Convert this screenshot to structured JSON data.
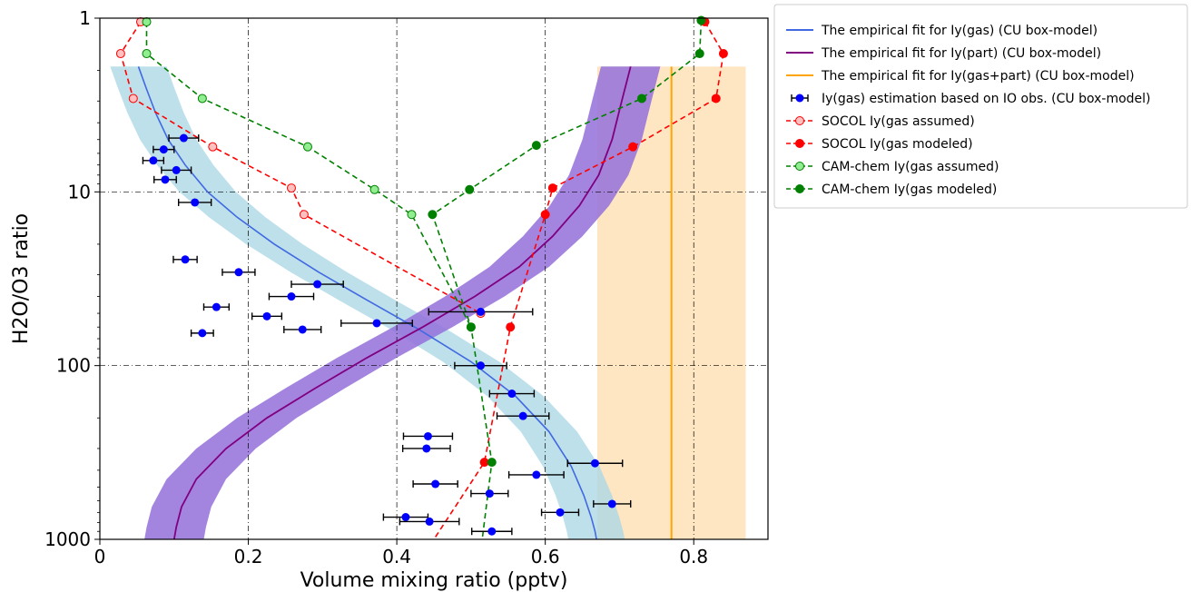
{
  "chart_data": {
    "type": "line",
    "xlabel": "Volume mixing ratio (pptv)",
    "ylabel": "H2O/O3 ratio",
    "xlim": [
      0,
      0.9
    ],
    "ylim": [
      1,
      1000
    ],
    "yscale": "log",
    "y_inverted": true,
    "grid": "dash-dot, major ticks",
    "legend_position": "outside-right-top",
    "x_ticks": [
      "0",
      "0.2",
      "0.4",
      "0.6",
      "0.8"
    ],
    "y_ticks": [
      "1",
      "10",
      "100",
      "1000"
    ],
    "legend": [
      {
        "label": "The empirical fit for Iy(gas) (CU box-model)",
        "color": "#4169e1",
        "marker": "line"
      },
      {
        "label": "The empirical fit for Iy(part) (CU box-model)",
        "color": "#800080",
        "marker": "line"
      },
      {
        "label": "The empirical fit for Iy(gas+part) (CU box-model)",
        "color": "#ffa500",
        "marker": "line"
      },
      {
        "label": "Iy(gas) estimation based on IO obs. (CU box-model)",
        "color": "#0000ff",
        "marker": "errorbar"
      },
      {
        "label": "SOCOL Iy(gas assumed)",
        "color": "#ff0000",
        "marker": "dashed-open"
      },
      {
        "label": "SOCOL Iy(gas modeled)",
        "color": "#ff0000",
        "marker": "dashed-filled"
      },
      {
        "label": "CAM-chem Iy(gas assumed)",
        "color": "#008000",
        "marker": "dashed-open"
      },
      {
        "label": "CAM-chem Iy(gas modeled)",
        "color": "#008000",
        "marker": "dashed-filled"
      }
    ],
    "fit_gas": {
      "color": "#4169e1",
      "band_color": "#add8e6",
      "x": [
        0.052,
        0.062,
        0.075,
        0.092,
        0.115,
        0.145,
        0.185,
        0.235,
        0.295,
        0.36,
        0.43,
        0.5,
        0.56,
        0.605,
        0.635,
        0.652,
        0.662,
        0.667,
        0.669
      ],
      "y": [
        1.9,
        2.5,
        3.5,
        5,
        7,
        10,
        14,
        20,
        29,
        42,
        62,
        95,
        150,
        240,
        380,
        560,
        750,
        900,
        1000
      ],
      "band_halfwidth": 0.038
    },
    "fit_part": {
      "color": "#800080",
      "band_color": "#9370db",
      "x": [
        0.715,
        0.703,
        0.69,
        0.672,
        0.646,
        0.61,
        0.565,
        0.505,
        0.435,
        0.36,
        0.29,
        0.225,
        0.17,
        0.13,
        0.11,
        0.103,
        0.1
      ],
      "y": [
        1.9,
        3,
        5,
        8,
        12,
        18,
        27,
        40,
        60,
        90,
        135,
        200,
        300,
        450,
        650,
        850,
        1000
      ],
      "band_halfwidth": 0.04
    },
    "fit_total": {
      "color": "#ffa500",
      "band_color": "#ffdead",
      "x_value": 0.77,
      "band": [
        0.67,
        0.87
      ],
      "y_top": 1.9
    },
    "obs": {
      "color": "#0000ff",
      "points": [
        {
          "x": 0.113,
          "y": 4.9,
          "err": 0.02
        },
        {
          "x": 0.086,
          "y": 5.7,
          "err": 0.014
        },
        {
          "x": 0.072,
          "y": 6.6,
          "err": 0.014
        },
        {
          "x": 0.103,
          "y": 7.5,
          "err": 0.02
        },
        {
          "x": 0.088,
          "y": 8.5,
          "err": 0.015
        },
        {
          "x": 0.128,
          "y": 11.5,
          "err": 0.022
        },
        {
          "x": 0.115,
          "y": 24.5,
          "err": 0.016
        },
        {
          "x": 0.187,
          "y": 29,
          "err": 0.022
        },
        {
          "x": 0.293,
          "y": 34,
          "err": 0.035
        },
        {
          "x": 0.258,
          "y": 40,
          "err": 0.03
        },
        {
          "x": 0.157,
          "y": 46,
          "err": 0.017
        },
        {
          "x": 0.513,
          "y": 49,
          "err": 0.07
        },
        {
          "x": 0.225,
          "y": 52,
          "err": 0.02
        },
        {
          "x": 0.373,
          "y": 57,
          "err": 0.048
        },
        {
          "x": 0.273,
          "y": 62,
          "err": 0.025
        },
        {
          "x": 0.138,
          "y": 65,
          "err": 0.015
        },
        {
          "x": 0.513,
          "y": 100,
          "err": 0.035
        },
        {
          "x": 0.555,
          "y": 145,
          "err": 0.03
        },
        {
          "x": 0.57,
          "y": 195,
          "err": 0.035
        },
        {
          "x": 0.442,
          "y": 255,
          "err": 0.033
        },
        {
          "x": 0.44,
          "y": 300,
          "err": 0.032
        },
        {
          "x": 0.667,
          "y": 365,
          "err": 0.037
        },
        {
          "x": 0.588,
          "y": 425,
          "err": 0.037
        },
        {
          "x": 0.452,
          "y": 480,
          "err": 0.03
        },
        {
          "x": 0.525,
          "y": 545,
          "err": 0.025
        },
        {
          "x": 0.69,
          "y": 625,
          "err": 0.025
        },
        {
          "x": 0.62,
          "y": 700,
          "err": 0.025
        },
        {
          "x": 0.412,
          "y": 745,
          "err": 0.03
        },
        {
          "x": 0.444,
          "y": 790,
          "err": 0.04
        },
        {
          "x": 0.528,
          "y": 900,
          "err": 0.027
        }
      ]
    },
    "socol_assumed": {
      "color": "#ff0000",
      "points": [
        [
          0.055,
          1.05
        ],
        [
          0.028,
          1.6
        ],
        [
          0.045,
          2.9
        ],
        [
          0.152,
          5.5
        ],
        [
          0.258,
          9.5
        ],
        [
          0.275,
          13.5
        ],
        [
          0.513,
          50
        ]
      ]
    },
    "socol_modeled": {
      "color": "#ff0000",
      "points": [
        [
          0.815,
          1.05
        ],
        [
          0.84,
          1.6
        ],
        [
          0.83,
          2.9
        ],
        [
          0.718,
          5.5
        ],
        [
          0.61,
          9.5
        ],
        [
          0.6,
          13.5
        ],
        [
          0.553,
          60
        ],
        [
          0.518,
          360
        ],
        [
          0.45,
          1000
        ]
      ]
    },
    "camchem_assumed": {
      "color": "#008000",
      "points": [
        [
          0.063,
          1.05
        ],
        [
          0.063,
          1.6
        ],
        [
          0.138,
          2.9
        ],
        [
          0.28,
          5.5
        ],
        [
          0.37,
          9.7
        ],
        [
          0.42,
          13.5
        ],
        [
          0.5,
          60
        ]
      ]
    },
    "camchem_modeled": {
      "color": "#008000",
      "points": [
        [
          0.81,
          1.03
        ],
        [
          0.808,
          1.6
        ],
        [
          0.73,
          2.9
        ],
        [
          0.588,
          5.4
        ],
        [
          0.498,
          9.7
        ],
        [
          0.448,
          13.5
        ],
        [
          0.5,
          60
        ],
        [
          0.528,
          360
        ],
        [
          0.515,
          1000
        ]
      ]
    }
  }
}
